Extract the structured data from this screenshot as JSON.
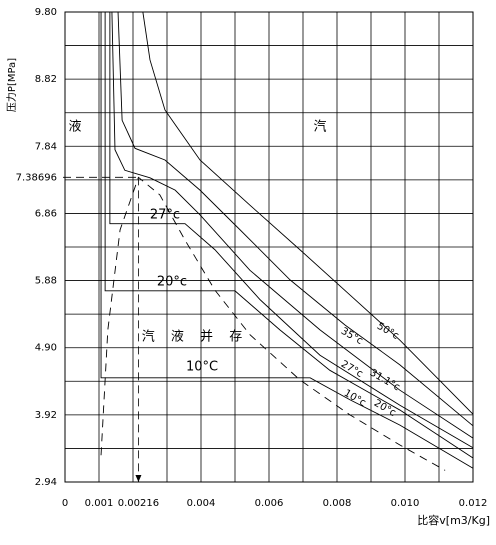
{
  "chart_data": {
    "type": "line",
    "ylabel": "压力P[MPa]",
    "xlabel": "比容v[m3/Kg]",
    "xlim": [
      0,
      0.012
    ],
    "ylim": [
      2.94,
      9.8
    ],
    "xticks": [
      0,
      0.001,
      0.00216,
      0.004,
      0.006,
      0.008,
      {
        "value": 0.01,
        "label": "0.010"
      },
      0.012
    ],
    "yticks": [
      {
        "value": 9.8,
        "label": "9.80"
      },
      8.82,
      7.84,
      7.38696,
      6.86,
      5.88,
      {
        "value": 4.9,
        "label": "4.90"
      },
      3.92,
      2.94
    ],
    "xgrid": [
      0.001,
      0.002,
      0.003,
      0.004,
      0.005,
      0.006,
      0.007,
      0.008,
      0.009,
      0.01,
      0.011,
      0.012
    ],
    "ygrid": [
      9.31,
      8.82,
      8.33,
      7.84,
      7.35,
      6.86,
      6.37,
      5.88,
      5.39,
      4.9,
      4.41,
      3.92,
      3.43
    ],
    "grid": true,
    "annotations": [
      "液",
      "汽",
      "汽 液 并 存",
      "27°c",
      "20°c",
      "10°C"
    ],
    "series": [
      {
        "name": "10°c",
        "color": "#000000",
        "x": [
          0.00106,
          0.00106,
          0.00721,
          0.00838,
          0.00985,
          0.012
        ],
        "values": [
          9.8,
          4.46,
          4.46,
          4.14,
          3.77,
          3.14
        ]
      },
      {
        "name": "20°c",
        "color": "#000000",
        "x": [
          0.00118,
          0.00118,
          0.005,
          0.00632,
          0.00779,
          0.00985,
          0.012
        ],
        "values": [
          9.8,
          5.73,
          5.73,
          5.16,
          4.57,
          3.99,
          3.29
        ]
      },
      {
        "name": "27°c",
        "color": "#000000",
        "x": [
          0.00132,
          0.00132,
          0.00353,
          0.00441,
          0.00574,
          0.0075,
          0.00985,
          0.012
        ],
        "values": [
          9.8,
          6.71,
          6.71,
          6.33,
          5.6,
          4.79,
          4.06,
          3.44
        ]
      },
      {
        "name": "31.1°c",
        "color": "#000000",
        "x": [
          0.00138,
          0.00147,
          0.00176,
          0.0025,
          0.00324,
          0.00397,
          0.00544,
          0.0075,
          0.00985,
          0.012
        ],
        "values": [
          9.8,
          7.79,
          7.49,
          7.38,
          7.2,
          6.84,
          6.03,
          5.16,
          4.28,
          3.58
        ]
      },
      {
        "name": "35°c",
        "color": "#000000",
        "x": [
          0.00156,
          0.00168,
          0.00206,
          0.00294,
          0.00397,
          0.00515,
          0.00662,
          0.00824,
          0.00985,
          0.012
        ],
        "values": [
          9.8,
          8.22,
          7.81,
          7.64,
          7.2,
          6.62,
          5.89,
          5.23,
          4.65,
          3.76
        ]
      },
      {
        "name": "50°c",
        "color": "#000000",
        "x": [
          0.00229,
          0.0025,
          0.00294,
          0.00397,
          0.00544,
          0.00691,
          0.00838,
          0.00985,
          0.012
        ],
        "values": [
          9.8,
          9.1,
          8.37,
          7.64,
          6.98,
          6.33,
          5.67,
          5.01,
          3.93
        ]
      },
      {
        "color": "#000000",
        "dashed": true,
        "x": [
          0.00106,
          0.00126,
          0.00162,
          0.00216,
          0.00279,
          0.00353,
          0.00441,
          0.00544,
          0.00691,
          0.00838,
          0.00985,
          0.01118
        ],
        "values": [
          3.33,
          5.16,
          6.62,
          7.38696,
          7.13,
          6.47,
          5.74,
          5.09,
          4.43,
          3.92,
          3.48,
          3.11
        ]
      }
    ]
  }
}
